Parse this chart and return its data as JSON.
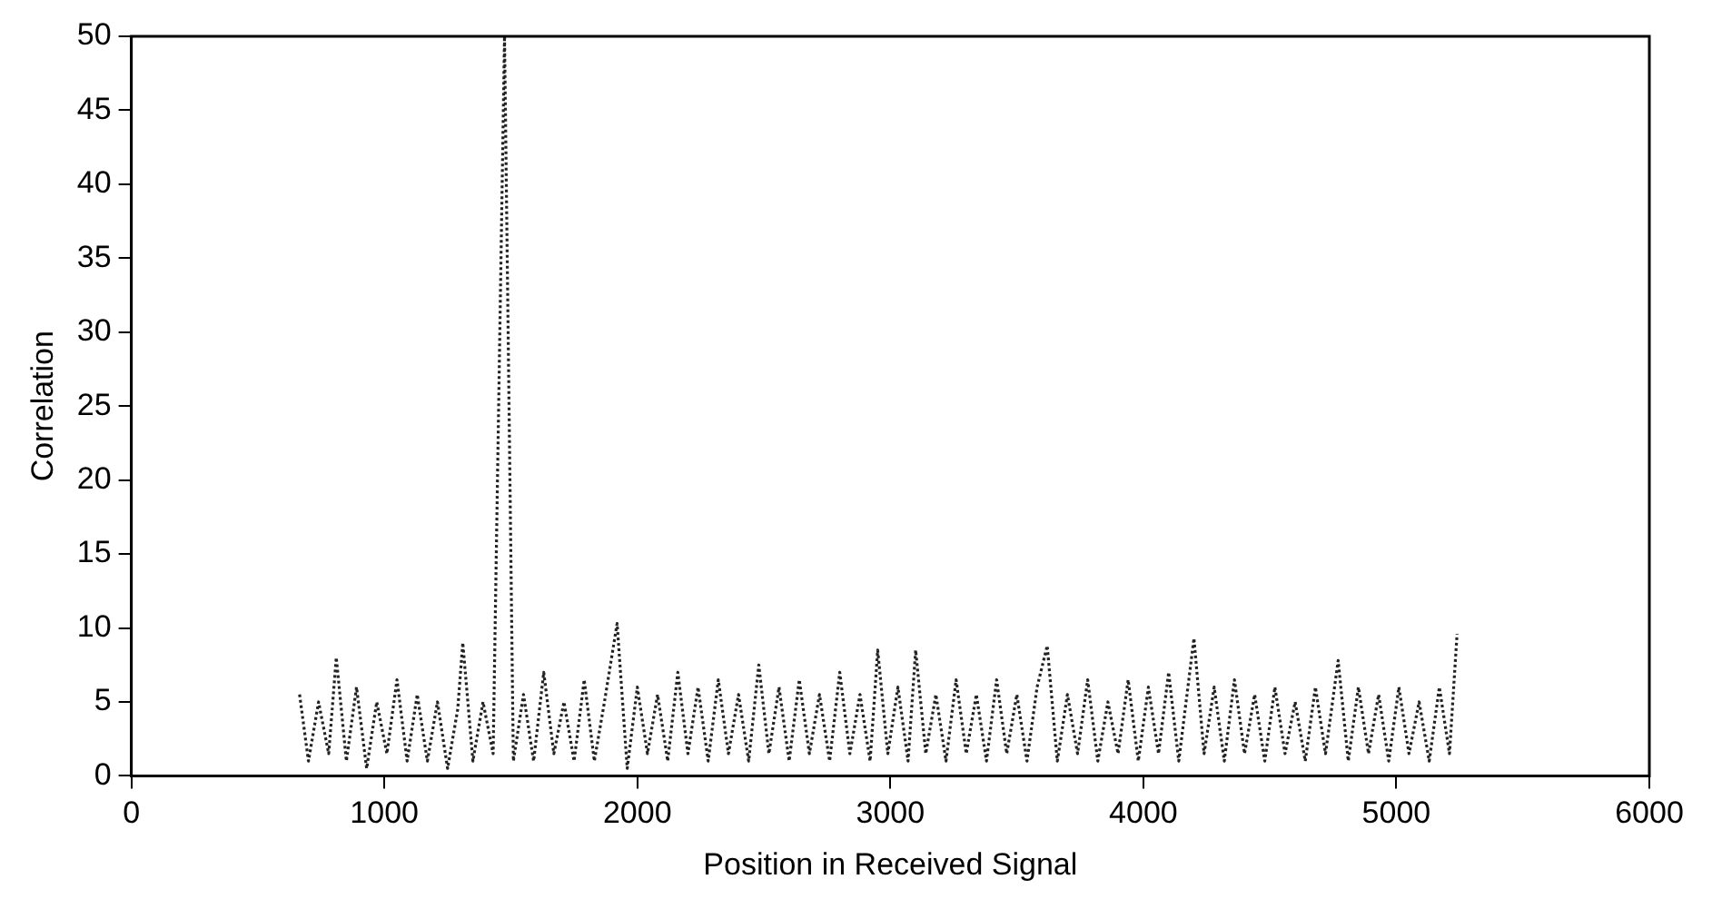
{
  "chart_data": {
    "type": "line",
    "xlabel": "Position in Received Signal",
    "ylabel": "Correlation",
    "xlim": [
      0,
      6000
    ],
    "xticks": [
      0,
      1000,
      2000,
      3000,
      4000,
      5000,
      6000
    ],
    "ylim": [
      0,
      50
    ],
    "yticks": [
      0,
      5,
      10,
      15,
      20,
      25,
      30,
      35,
      40,
      45,
      50
    ],
    "grid": false,
    "legend": false,
    "marker": "none",
    "line_style": "dotted",
    "series": [
      {
        "color": "#222222",
        "x": [
          665,
          700,
          740,
          780,
          810,
          850,
          890,
          930,
          970,
          1010,
          1050,
          1090,
          1130,
          1170,
          1210,
          1250,
          1290,
          1310,
          1350,
          1390,
          1430,
          1475,
          1510,
          1550,
          1590,
          1630,
          1670,
          1710,
          1750,
          1790,
          1830,
          1870,
          1920,
          1960,
          2000,
          2040,
          2080,
          2120,
          2160,
          2200,
          2240,
          2280,
          2320,
          2360,
          2400,
          2440,
          2480,
          2520,
          2560,
          2600,
          2640,
          2680,
          2720,
          2760,
          2800,
          2840,
          2880,
          2920,
          2950,
          2990,
          3030,
          3070,
          3100,
          3140,
          3180,
          3220,
          3260,
          3300,
          3340,
          3380,
          3420,
          3460,
          3500,
          3540,
          3580,
          3620,
          3660,
          3700,
          3740,
          3780,
          3820,
          3860,
          3900,
          3940,
          3980,
          4020,
          4060,
          4100,
          4140,
          4200,
          4240,
          4280,
          4320,
          4360,
          4400,
          4440,
          4480,
          4520,
          4560,
          4600,
          4640,
          4680,
          4720,
          4770,
          4810,
          4850,
          4890,
          4930,
          4970,
          5010,
          5050,
          5090,
          5130,
          5170,
          5210,
          5240
        ],
        "values": [
          5.5,
          1,
          5,
          1.5,
          8,
          1,
          6,
          0.5,
          5,
          1.5,
          6.5,
          1,
          5.5,
          1,
          5,
          0.5,
          4.5,
          9,
          1,
          5,
          1.5,
          50,
          1,
          5.5,
          1,
          7,
          1.5,
          5,
          1,
          6.5,
          1,
          5,
          10.3,
          0.5,
          6,
          1.5,
          5.5,
          1,
          7,
          1.5,
          6,
          1,
          6.5,
          1.5,
          5.5,
          1,
          7.5,
          1.5,
          6,
          1,
          6.5,
          1.5,
          5.5,
          1,
          7,
          1.5,
          5.5,
          1,
          8.5,
          1.5,
          6,
          1,
          8.5,
          1.5,
          5.5,
          1,
          6.5,
          1.5,
          5.5,
          1,
          6.5,
          1.5,
          5.5,
          1,
          6,
          8.8,
          1,
          5.5,
          1.5,
          6.5,
          1,
          5,
          1.5,
          6.5,
          1,
          6,
          1.5,
          7,
          1,
          9.3,
          1.5,
          6,
          1,
          6.5,
          1.5,
          5.5,
          1,
          6,
          1.5,
          5,
          1,
          6,
          1.5,
          7.8,
          1,
          6,
          1.5,
          5.5,
          1,
          6,
          1.5,
          5,
          1,
          6,
          1.5,
          9.6
        ]
      }
    ]
  }
}
